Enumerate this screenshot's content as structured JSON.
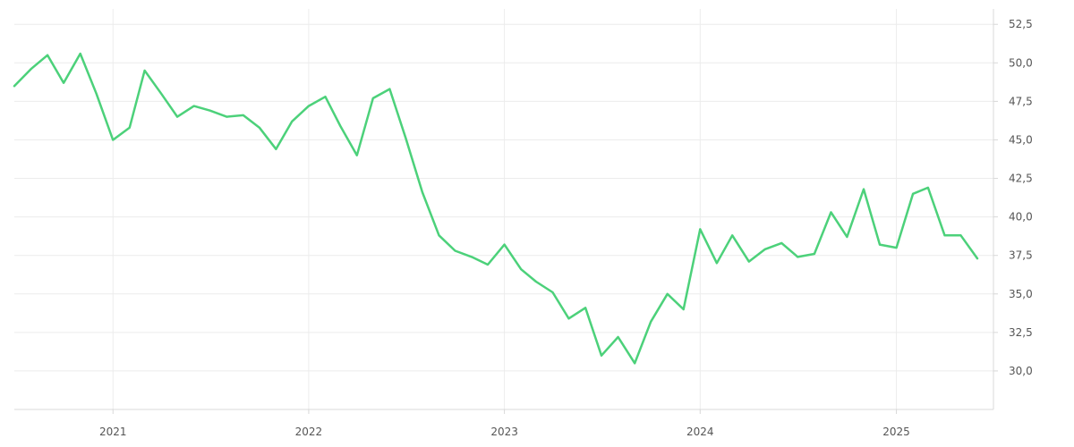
{
  "chart_data": {
    "type": "line",
    "title": "",
    "xlabel": "",
    "ylabel": "",
    "xlim": [
      "2020-07-01",
      "2025-07-01"
    ],
    "ylim": [
      27.5,
      53.5
    ],
    "y_ticks": [
      30.0,
      32.5,
      35.0,
      37.5,
      40.0,
      42.5,
      45.0,
      47.5,
      50.0,
      52.5
    ],
    "y_tick_labels": [
      "30,0",
      "32,5",
      "35,0",
      "37,5",
      "40,0",
      "42,5",
      "45,0",
      "47,5",
      "50,0",
      "52,5"
    ],
    "x_ticks": [
      "2021-01-01",
      "2022-01-01",
      "2023-01-01",
      "2024-01-01",
      "2025-01-01"
    ],
    "x_tick_labels": [
      "2021",
      "2022",
      "2023",
      "2024",
      "2025"
    ],
    "y_axis_position": "right",
    "grid": true,
    "legend": "none",
    "series": [
      {
        "color": "#4cd17a",
        "x": [
          "2020-07-01",
          "2020-08-01",
          "2020-09-01",
          "2020-10-01",
          "2020-11-01",
          "2020-12-01",
          "2021-01-01",
          "2021-02-01",
          "2021-03-01",
          "2021-04-01",
          "2021-05-01",
          "2021-06-01",
          "2021-07-01",
          "2021-08-01",
          "2021-09-01",
          "2021-10-01",
          "2021-11-01",
          "2021-12-01",
          "2022-01-01",
          "2022-02-01",
          "2022-03-01",
          "2022-04-01",
          "2022-05-01",
          "2022-06-01",
          "2022-07-01",
          "2022-08-01",
          "2022-09-01",
          "2022-10-01",
          "2022-11-01",
          "2022-12-01",
          "2023-01-01",
          "2023-02-01",
          "2023-03-01",
          "2023-04-01",
          "2023-05-01",
          "2023-06-01",
          "2023-07-01",
          "2023-08-01",
          "2023-09-01",
          "2023-10-01",
          "2023-11-01",
          "2023-12-01",
          "2024-01-01",
          "2024-02-01",
          "2024-03-01",
          "2024-04-01",
          "2024-05-01",
          "2024-06-01",
          "2024-07-01",
          "2024-08-01",
          "2024-09-01",
          "2024-10-01",
          "2024-11-01",
          "2024-12-01",
          "2025-01-01",
          "2025-02-01",
          "2025-03-01",
          "2025-04-01",
          "2025-05-01",
          "2025-06-01"
        ],
        "values": [
          48.5,
          49.6,
          50.5,
          48.7,
          50.6,
          48.0,
          45.0,
          45.8,
          49.5,
          48.0,
          46.5,
          47.2,
          46.9,
          46.5,
          46.6,
          45.8,
          44.4,
          46.2,
          47.2,
          47.8,
          45.9,
          44.0,
          47.7,
          48.3,
          45.1,
          41.6,
          38.8,
          37.8,
          37.4,
          36.9,
          38.2,
          36.6,
          35.8,
          35.1,
          33.4,
          34.1,
          31.0,
          32.2,
          30.5,
          33.2,
          35.0,
          34.0,
          39.2,
          37.0,
          38.8,
          37.1,
          37.9,
          38.3,
          37.4,
          37.6,
          40.3,
          38.7,
          41.8,
          38.2,
          38.0,
          41.5,
          41.9,
          38.8,
          38.8,
          37.3
        ]
      }
    ]
  }
}
